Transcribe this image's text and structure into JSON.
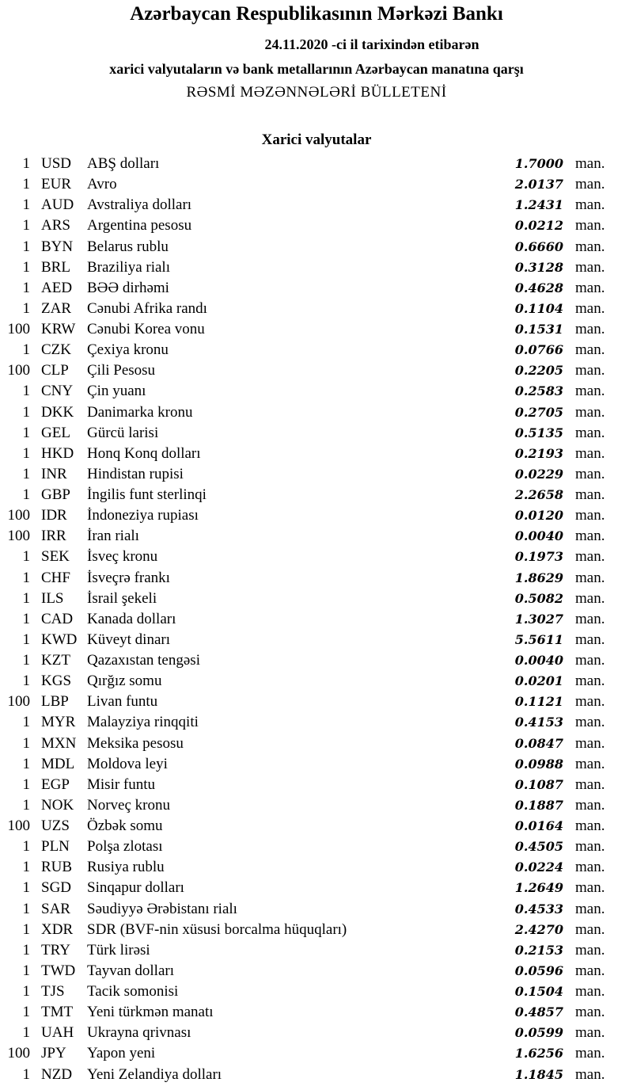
{
  "header": {
    "title": "Azərbaycan Respublikasının Mərkəzi Bankı",
    "date_line": "24.11.2020  -ci il tarixindən etibarən",
    "subtitle": "xarici valyutaların və bank metallarının Azərbaycan manatına qarşı",
    "bulletin": "RƏSMİ MƏZƏNNƏLƏRİ BÜLLETENİ"
  },
  "section_title": "Xarici valyutalar",
  "unit": "man.",
  "rows": [
    {
      "n": "1",
      "code": "USD",
      "name": "ABŞ dolları",
      "rate": "1.7000"
    },
    {
      "n": "1",
      "code": "EUR",
      "name": "Avro",
      "rate": "2.0137"
    },
    {
      "n": "1",
      "code": "AUD",
      "name": "Avstraliya dolları",
      "rate": "1.2431"
    },
    {
      "n": "1",
      "code": "ARS",
      "name": "Argentina pesosu",
      "rate": "0.0212"
    },
    {
      "n": "1",
      "code": "BYN",
      "name": "Belarus rublu",
      "rate": "0.6660"
    },
    {
      "n": "1",
      "code": "BRL",
      "name": "Braziliya rialı",
      "rate": "0.3128"
    },
    {
      "n": "1",
      "code": "AED",
      "name": "BƏƏ dirhəmi",
      "rate": "0.4628"
    },
    {
      "n": "1",
      "code": "ZAR",
      "name": "Cənubi Afrika randı",
      "rate": "0.1104"
    },
    {
      "n": "100",
      "code": "KRW",
      "name": "Cənubi Korea vonu",
      "rate": "0.1531"
    },
    {
      "n": "1",
      "code": "CZK",
      "name": "Çexiya kronu",
      "rate": "0.0766"
    },
    {
      "n": "100",
      "code": "CLP",
      "name": "Çili Pesosu",
      "rate": "0.2205"
    },
    {
      "n": "1",
      "code": "CNY",
      "name": "Çin yuanı",
      "rate": "0.2583"
    },
    {
      "n": "1",
      "code": "DKK",
      "name": "Danimarka kronu",
      "rate": "0.2705"
    },
    {
      "n": "1",
      "code": "GEL",
      "name": "Gürcü larisi",
      "rate": "0.5135"
    },
    {
      "n": "1",
      "code": "HKD",
      "name": "Honq Konq dolları",
      "rate": "0.2193"
    },
    {
      "n": "1",
      "code": "INR",
      "name": "Hindistan rupisi",
      "rate": "0.0229"
    },
    {
      "n": "1",
      "code": "GBP",
      "name": "İngilis funt sterlinqi",
      "rate": "2.2658"
    },
    {
      "n": "100",
      "code": "IDR",
      "name": "İndoneziya rupiası",
      "rate": "0.0120"
    },
    {
      "n": "100",
      "code": "IRR",
      "name": "İran rialı",
      "rate": "0.0040"
    },
    {
      "n": "1",
      "code": "SEK",
      "name": "İsveç kronu",
      "rate": "0.1973"
    },
    {
      "n": "1",
      "code": "CHF",
      "name": "İsveçrə frankı",
      "rate": "1.8629"
    },
    {
      "n": "1",
      "code": "ILS",
      "name": "İsrail şekeli",
      "rate": "0.5082"
    },
    {
      "n": "1",
      "code": "CAD",
      "name": "Kanada dolları",
      "rate": "1.3027"
    },
    {
      "n": "1",
      "code": "KWD",
      "name": "Küveyt dinarı",
      "rate": "5.5611"
    },
    {
      "n": "1",
      "code": "KZT",
      "name": "Qazaxıstan tengəsi",
      "rate": "0.0040"
    },
    {
      "n": "1",
      "code": "KGS",
      "name": "Qırğız somu",
      "rate": "0.0201"
    },
    {
      "n": "100",
      "code": "LBP",
      "name": "Livan funtu",
      "rate": "0.1121"
    },
    {
      "n": "1",
      "code": "MYR",
      "name": "Malayziya rinqqiti",
      "rate": "0.4153"
    },
    {
      "n": "1",
      "code": "MXN",
      "name": "Meksika pesosu",
      "rate": "0.0847"
    },
    {
      "n": "1",
      "code": "MDL",
      "name": "Moldova leyi",
      "rate": "0.0988"
    },
    {
      "n": "1",
      "code": "EGP",
      "name": "Misir funtu",
      "rate": "0.1087"
    },
    {
      "n": "1",
      "code": "NOK",
      "name": "Norveç kronu",
      "rate": "0.1887"
    },
    {
      "n": "100",
      "code": "UZS",
      "name": "Özbək somu",
      "rate": "0.0164"
    },
    {
      "n": "1",
      "code": "PLN",
      "name": "Polşa zlotası",
      "rate": "0.4505"
    },
    {
      "n": "1",
      "code": "RUB",
      "name": "Rusiya rublu",
      "rate": "0.0224"
    },
    {
      "n": "1",
      "code": "SGD",
      "name": "Sinqapur dolları",
      "rate": "1.2649"
    },
    {
      "n": "1",
      "code": "SAR",
      "name": "Səudiyyə Ərəbistanı rialı",
      "rate": "0.4533"
    },
    {
      "n": "1",
      "code": "XDR",
      "name": "SDR (BVF-nin xüsusi borcalma hüquqları)",
      "rate": "2.4270"
    },
    {
      "n": "1",
      "code": "TRY",
      "name": "Türk lirəsi",
      "rate": "0.2153"
    },
    {
      "n": "1",
      "code": "TWD",
      "name": "Tayvan dolları",
      "rate": "0.0596"
    },
    {
      "n": "1",
      "code": "TJS",
      "name": "Tacik somonisi",
      "rate": "0.1504"
    },
    {
      "n": "1",
      "code": "TMT",
      "name": "Yeni türkmən manatı",
      "rate": "0.4857"
    },
    {
      "n": "1",
      "code": "UAH",
      "name": "Ukrayna qrivnası",
      "rate": "0.0599"
    },
    {
      "n": "100",
      "code": "JPY",
      "name": "Yapon yeni",
      "rate": "1.6256"
    },
    {
      "n": "1",
      "code": "NZD",
      "name": "Yeni Zelandiya dolları",
      "rate": "1.1845"
    }
  ]
}
